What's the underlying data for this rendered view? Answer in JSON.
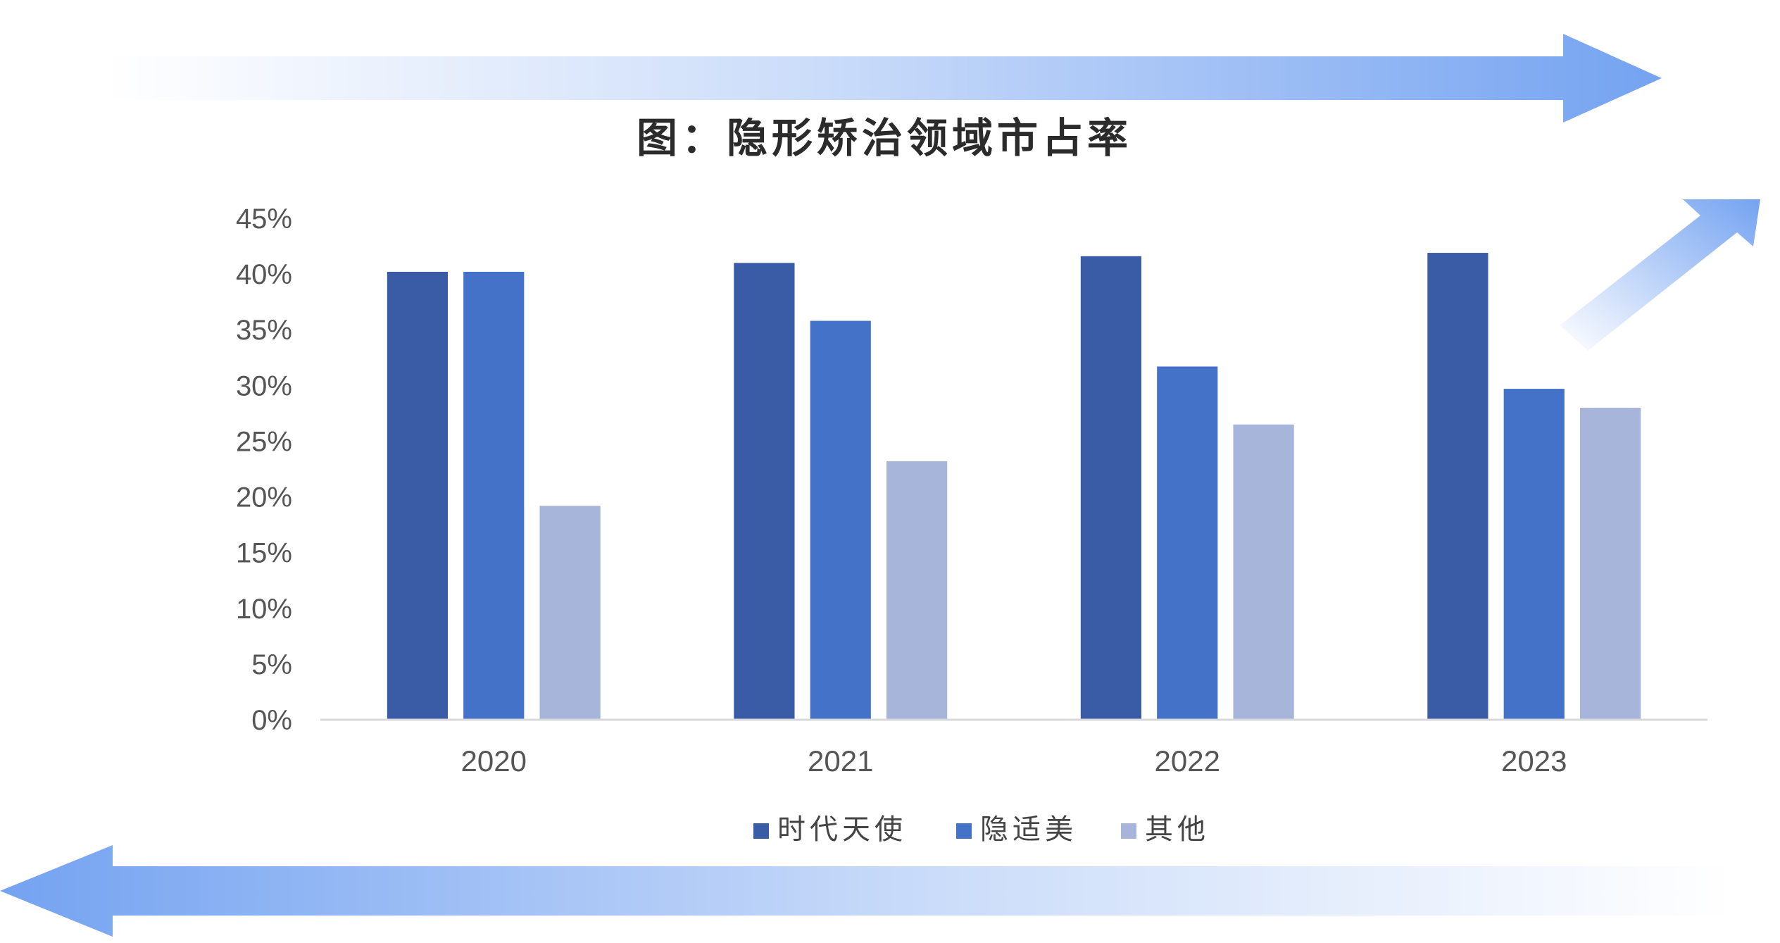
{
  "chart_data": {
    "type": "bar",
    "title": "图：隐形矫治领域市占率",
    "categories": [
      "2020",
      "2021",
      "2022",
      "2023"
    ],
    "series": [
      {
        "name": "时代天使",
        "values": [
          40.2,
          41.0,
          41.6,
          41.9
        ],
        "color": "#3a5ba6"
      },
      {
        "name": "隐适美",
        "values": [
          40.2,
          35.8,
          31.7,
          29.7
        ],
        "color": "#4472c8"
      },
      {
        "name": "其他",
        "values": [
          19.2,
          23.2,
          26.5,
          28.0
        ],
        "color": "#a8b5da"
      }
    ],
    "yticks": [
      "0%",
      "5%",
      "10%",
      "15%",
      "20%",
      "25%",
      "30%",
      "35%",
      "40%",
      "45%"
    ],
    "ylim": [
      0,
      45
    ],
    "xlabel": "",
    "ylabel": "",
    "grid": false,
    "legend": "bottom"
  },
  "colors": {
    "arrow": "#6d9ef0",
    "axis_line": "#d9d9d9"
  }
}
